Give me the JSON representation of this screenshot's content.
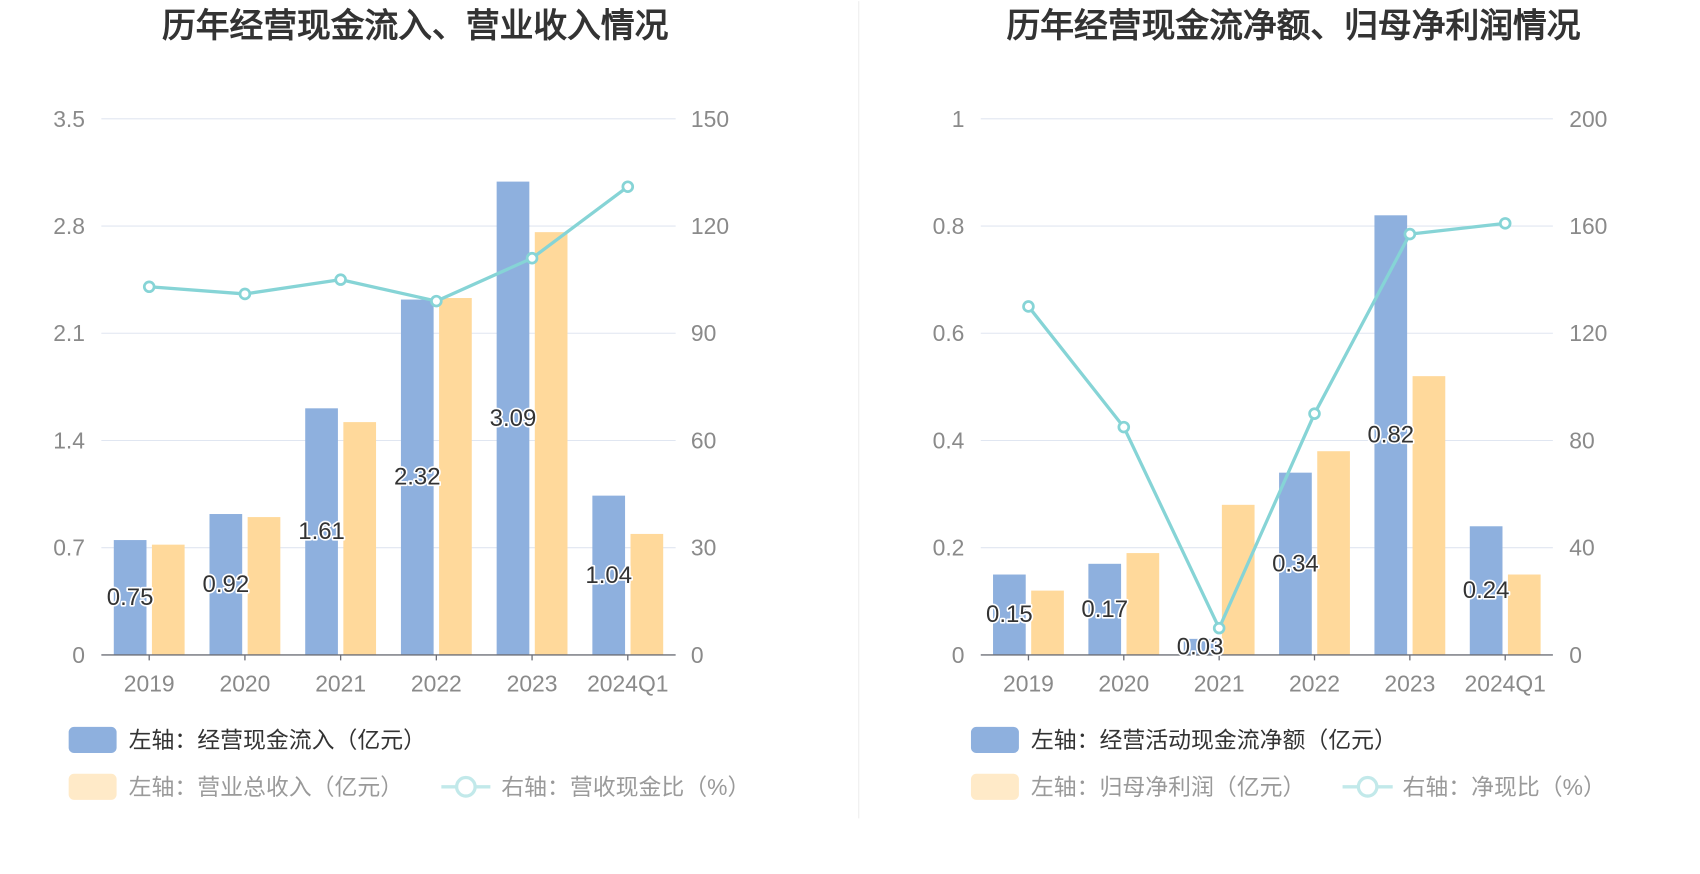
{
  "chart_data": [
    {
      "type": "bar",
      "title": "历年经营现金流入、营业收入情况",
      "categories": [
        "2019",
        "2020",
        "2021",
        "2022",
        "2023",
        "2024Q1"
      ],
      "y_left": {
        "ylim": [
          0,
          3.5
        ],
        "tick_labels": [
          "0",
          "0.7",
          "1.4",
          "2.1",
          "2.8",
          "3.5"
        ]
      },
      "y_right": {
        "ylim": [
          0,
          150
        ],
        "tick_labels": [
          "0",
          "30",
          "60",
          "90",
          "120",
          "150"
        ]
      },
      "grid": true,
      "legend_position": "bottom",
      "series": [
        {
          "name": "左轴：经营现金流入（亿元）",
          "type": "bar",
          "axis": "left",
          "color": "#8EB0DE",
          "values": [
            0.75,
            0.92,
            1.61,
            2.32,
            3.09,
            1.04
          ],
          "data_labels": [
            "0.75",
            "0.92",
            "1.61",
            "2.32",
            "3.09",
            "1.04"
          ]
        },
        {
          "name": "左轴：营业总收入（亿元）",
          "type": "bar",
          "axis": "left",
          "color": "#FFD99B",
          "values": [
            0.72,
            0.9,
            1.52,
            2.33,
            2.76,
            0.79
          ]
        },
        {
          "name": "右轴：营收现金比（%）",
          "type": "line",
          "axis": "right",
          "color": "#86D4D6",
          "values": [
            103,
            101,
            105,
            99,
            111,
            131
          ]
        }
      ]
    },
    {
      "type": "bar",
      "title": "历年经营现金流净额、归母净利润情况",
      "categories": [
        "2019",
        "2020",
        "2021",
        "2022",
        "2023",
        "2024Q1"
      ],
      "y_left": {
        "ylim": [
          0,
          1
        ],
        "tick_labels": [
          "0",
          "0.2",
          "0.4",
          "0.6",
          "0.8",
          "1"
        ]
      },
      "y_right": {
        "ylim": [
          0,
          200
        ],
        "tick_labels": [
          "0",
          "40",
          "80",
          "120",
          "160",
          "200"
        ]
      },
      "grid": true,
      "legend_position": "bottom",
      "series": [
        {
          "name": "左轴：经营活动现金流净额（亿元）",
          "type": "bar",
          "axis": "left",
          "color": "#8EB0DE",
          "values": [
            0.15,
            0.17,
            0.03,
            0.34,
            0.82,
            0.24
          ],
          "data_labels": [
            "0.15",
            "0.17",
            "0.03",
            "0.34",
            "0.82",
            "0.24"
          ]
        },
        {
          "name": "左轴：归母净利润（亿元）",
          "type": "bar",
          "axis": "left",
          "color": "#FFD99B",
          "values": [
            0.12,
            0.19,
            0.28,
            0.38,
            0.52,
            0.15
          ]
        },
        {
          "name": "右轴：净现比（%）",
          "type": "line",
          "axis": "right",
          "color": "#86D4D6",
          "values": [
            130,
            85,
            10,
            90,
            157,
            161
          ]
        }
      ]
    }
  ]
}
